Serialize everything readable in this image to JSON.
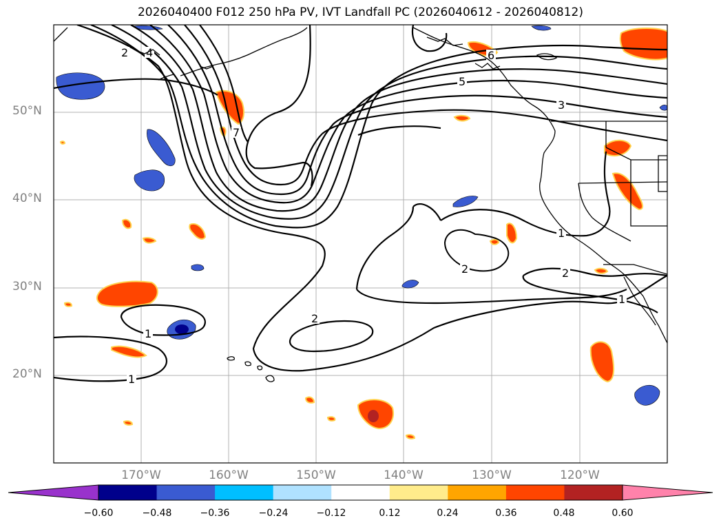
{
  "title": "2026040400 F012 250 hPa PV, IVT Landfall PC (2026040612 - 2026040812)",
  "lat_labels": [
    "50°N",
    "40°N",
    "30°N",
    "20°N"
  ],
  "lon_labels": [
    "170°W",
    "160°W",
    "150°W",
    "140°W",
    "130°W",
    "120°W"
  ],
  "contour_labels": [
    "2",
    "4",
    "7",
    "6",
    "5",
    "3",
    "1",
    "2",
    "2",
    "2",
    "1",
    "1",
    "1"
  ],
  "colorbar": {
    "colors": [
      "#9932cc",
      "#00008b",
      "#3a5bd1",
      "#00bfff",
      "#b0e2ff",
      "#ffffff",
      "#ffec8b",
      "#ffa500",
      "#ff4500",
      "#b22222",
      "#ff82ab"
    ],
    "ticks": [
      "−0.60",
      "−0.48",
      "−0.36",
      "−0.24",
      "−0.12",
      "0.12",
      "0.24",
      "0.36",
      "0.48",
      "0.60"
    ]
  }
}
